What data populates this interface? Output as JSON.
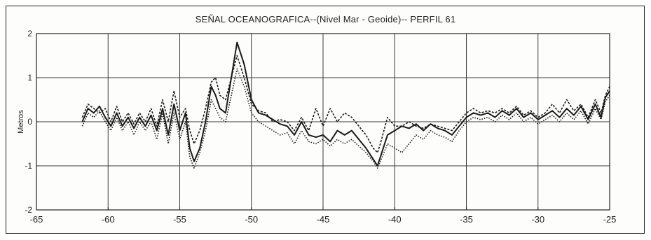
{
  "chart_data": {
    "type": "line",
    "title": "SEÑAL OCEANOGRAFICA--(Nivel Mar - Geoide)-- PERFIL 61",
    "ylabel": "Metros",
    "xlabel": "",
    "xlim": [
      -65,
      -25
    ],
    "ylim": [
      -2,
      2
    ],
    "xticks": [
      "-65",
      "-60",
      "-55",
      "-50",
      "-45",
      "-40",
      "-35",
      "-30",
      "-25"
    ],
    "yticks": [
      "2",
      "1",
      "0",
      "-1",
      "-2"
    ],
    "grid": true,
    "series": [
      {
        "values": [
          [
            -61.8,
            0.0
          ],
          [
            -61.4,
            0.3
          ],
          [
            -61.0,
            0.2
          ],
          [
            -60.6,
            0.35
          ],
          [
            -60.2,
            0.1
          ],
          [
            -59.8,
            -0.1
          ],
          [
            -59.4,
            0.2
          ],
          [
            -59.0,
            -0.1
          ],
          [
            -58.6,
            0.1
          ],
          [
            -58.2,
            -0.15
          ],
          [
            -57.8,
            0.1
          ],
          [
            -57.4,
            -0.1
          ],
          [
            -57.0,
            0.15
          ],
          [
            -56.6,
            -0.2
          ],
          [
            -56.2,
            0.3
          ],
          [
            -55.8,
            -0.3
          ],
          [
            -55.4,
            0.4
          ],
          [
            -55.0,
            -0.2
          ],
          [
            -54.6,
            0.2
          ],
          [
            -54.3,
            -0.6
          ],
          [
            -54.0,
            -0.9
          ],
          [
            -53.6,
            -0.6
          ],
          [
            -53.2,
            0.0
          ],
          [
            -52.8,
            0.8
          ],
          [
            -52.5,
            0.6
          ],
          [
            -52.2,
            0.3
          ],
          [
            -51.8,
            0.2
          ],
          [
            -51.0,
            1.8
          ],
          [
            -50.5,
            1.3
          ],
          [
            -50.0,
            0.5
          ],
          [
            -49.5,
            0.2
          ],
          [
            -49.0,
            0.15
          ],
          [
            -48.5,
            0.05
          ],
          [
            -48.0,
            -0.05
          ],
          [
            -47.5,
            -0.1
          ],
          [
            -47.0,
            -0.3
          ],
          [
            -46.5,
            0.0
          ],
          [
            -46.0,
            -0.3
          ],
          [
            -45.5,
            -0.35
          ],
          [
            -45.0,
            -0.3
          ],
          [
            -44.5,
            -0.45
          ],
          [
            -44.0,
            -0.2
          ],
          [
            -43.5,
            -0.3
          ],
          [
            -43.0,
            -0.2
          ],
          [
            -42.5,
            -0.4
          ],
          [
            -42.0,
            -0.6
          ],
          [
            -41.5,
            -0.85
          ],
          [
            -41.2,
            -1.0
          ],
          [
            -41.0,
            -0.8
          ],
          [
            -40.5,
            -0.3
          ],
          [
            -40.0,
            -0.2
          ],
          [
            -39.5,
            -0.1
          ],
          [
            -39.0,
            -0.15
          ],
          [
            -38.5,
            -0.05
          ],
          [
            -38.0,
            -0.2
          ],
          [
            -37.5,
            -0.05
          ],
          [
            -37.0,
            -0.15
          ],
          [
            -36.5,
            -0.2
          ],
          [
            -36.0,
            -0.3
          ],
          [
            -35.5,
            -0.1
          ],
          [
            -35.0,
            0.1
          ],
          [
            -34.5,
            0.2
          ],
          [
            -34.0,
            0.15
          ],
          [
            -33.5,
            0.2
          ],
          [
            -33.0,
            0.1
          ],
          [
            -32.5,
            0.25
          ],
          [
            -32.0,
            0.15
          ],
          [
            -31.5,
            0.3
          ],
          [
            -31.0,
            0.1
          ],
          [
            -30.5,
            0.2
          ],
          [
            -30.0,
            0.05
          ],
          [
            -29.5,
            0.15
          ],
          [
            -29.0,
            0.25
          ],
          [
            -28.5,
            0.1
          ],
          [
            -28.0,
            0.3
          ],
          [
            -27.5,
            0.15
          ],
          [
            -27.0,
            0.35
          ],
          [
            -26.5,
            0.05
          ],
          [
            -26.0,
            0.4
          ],
          [
            -25.6,
            0.1
          ],
          [
            -25.3,
            0.55
          ],
          [
            -25.0,
            0.7
          ]
        ]
      },
      {
        "values": [
          [
            -61.8,
            0.1
          ],
          [
            -61.4,
            0.4
          ],
          [
            -61.0,
            0.3
          ],
          [
            -60.6,
            0.2
          ],
          [
            -60.2,
            0.3
          ],
          [
            -59.8,
            0.0
          ],
          [
            -59.4,
            0.35
          ],
          [
            -59.0,
            0.0
          ],
          [
            -58.6,
            0.2
          ],
          [
            -58.2,
            -0.05
          ],
          [
            -57.8,
            0.2
          ],
          [
            -57.4,
            0.0
          ],
          [
            -57.0,
            0.3
          ],
          [
            -56.6,
            -0.1
          ],
          [
            -56.2,
            0.5
          ],
          [
            -55.8,
            0.0
          ],
          [
            -55.4,
            0.7
          ],
          [
            -55.0,
            0.1
          ],
          [
            -54.6,
            0.3
          ],
          [
            -54.3,
            -0.2
          ],
          [
            -54.0,
            -0.5
          ],
          [
            -53.6,
            -0.2
          ],
          [
            -53.2,
            0.3
          ],
          [
            -52.8,
            0.9
          ],
          [
            -52.5,
            1.0
          ],
          [
            -52.2,
            0.6
          ],
          [
            -51.8,
            0.5
          ],
          [
            -51.0,
            1.5
          ],
          [
            -50.5,
            1.0
          ],
          [
            -50.0,
            0.4
          ],
          [
            -49.5,
            0.25
          ],
          [
            -49.0,
            0.2
          ],
          [
            -48.5,
            0.0
          ],
          [
            -48.0,
            0.05
          ],
          [
            -47.5,
            0.0
          ],
          [
            -47.0,
            -0.2
          ],
          [
            -46.5,
            0.1
          ],
          [
            -46.0,
            -0.2
          ],
          [
            -45.5,
            0.3
          ],
          [
            -45.0,
            -0.1
          ],
          [
            -44.5,
            0.3
          ],
          [
            -44.0,
            0.0
          ],
          [
            -43.5,
            0.2
          ],
          [
            -43.0,
            0.1
          ],
          [
            -42.5,
            -0.1
          ],
          [
            -42.0,
            -0.3
          ],
          [
            -41.5,
            -0.6
          ],
          [
            -41.2,
            -0.7
          ],
          [
            -41.0,
            -0.5
          ],
          [
            -40.5,
            0.1
          ],
          [
            -40.0,
            -0.1
          ],
          [
            -39.5,
            -0.1
          ],
          [
            -39.0,
            0.0
          ],
          [
            -38.5,
            -0.1
          ],
          [
            -38.0,
            -0.15
          ],
          [
            -37.5,
            -0.05
          ],
          [
            -37.0,
            -0.1
          ],
          [
            -36.5,
            -0.15
          ],
          [
            -36.0,
            -0.2
          ],
          [
            -35.5,
            0.0
          ],
          [
            -35.0,
            0.2
          ],
          [
            -34.5,
            0.3
          ],
          [
            -34.0,
            0.2
          ],
          [
            -33.5,
            0.25
          ],
          [
            -33.0,
            0.2
          ],
          [
            -32.5,
            0.3
          ],
          [
            -32.0,
            0.2
          ],
          [
            -31.5,
            0.35
          ],
          [
            -31.0,
            0.15
          ],
          [
            -30.5,
            0.25
          ],
          [
            -30.0,
            0.1
          ],
          [
            -29.5,
            0.2
          ],
          [
            -29.0,
            0.4
          ],
          [
            -28.5,
            0.2
          ],
          [
            -28.0,
            0.5
          ],
          [
            -27.5,
            0.25
          ],
          [
            -27.0,
            0.4
          ],
          [
            -26.5,
            0.1
          ],
          [
            -26.0,
            0.5
          ],
          [
            -25.6,
            0.2
          ],
          [
            -25.3,
            0.6
          ],
          [
            -25.0,
            0.8
          ]
        ]
      },
      {
        "values": [
          [
            -61.8,
            -0.1
          ],
          [
            -61.4,
            0.2
          ],
          [
            -61.0,
            0.1
          ],
          [
            -60.6,
            0.25
          ],
          [
            -60.2,
            0.0
          ],
          [
            -59.8,
            -0.2
          ],
          [
            -59.4,
            0.1
          ],
          [
            -59.0,
            -0.2
          ],
          [
            -58.6,
            0.0
          ],
          [
            -58.2,
            -0.3
          ],
          [
            -57.8,
            0.0
          ],
          [
            -57.4,
            -0.2
          ],
          [
            -57.0,
            0.0
          ],
          [
            -56.6,
            -0.4
          ],
          [
            -56.2,
            0.2
          ],
          [
            -55.8,
            -0.5
          ],
          [
            -55.4,
            0.2
          ],
          [
            -55.0,
            -0.4
          ],
          [
            -54.6,
            0.0
          ],
          [
            -54.3,
            -0.8
          ],
          [
            -54.0,
            -1.05
          ],
          [
            -53.6,
            -0.7
          ],
          [
            -53.2,
            -0.2
          ],
          [
            -52.8,
            0.5
          ],
          [
            -52.5,
            0.3
          ],
          [
            -52.2,
            0.1
          ],
          [
            -51.8,
            0.0
          ],
          [
            -51.0,
            1.2
          ],
          [
            -50.5,
            0.8
          ],
          [
            -50.0,
            0.2
          ],
          [
            -49.5,
            0.0
          ],
          [
            -49.0,
            -0.1
          ],
          [
            -48.5,
            -0.2
          ],
          [
            -48.0,
            -0.3
          ],
          [
            -47.5,
            -0.25
          ],
          [
            -47.0,
            -0.5
          ],
          [
            -46.5,
            -0.2
          ],
          [
            -46.0,
            -0.45
          ],
          [
            -45.5,
            -0.5
          ],
          [
            -45.0,
            -0.4
          ],
          [
            -44.5,
            -0.55
          ],
          [
            -44.0,
            -0.4
          ],
          [
            -43.5,
            -0.5
          ],
          [
            -43.0,
            -0.4
          ],
          [
            -42.5,
            -0.55
          ],
          [
            -42.0,
            -0.7
          ],
          [
            -41.5,
            -0.9
          ],
          [
            -41.2,
            -1.05
          ],
          [
            -41.0,
            -0.9
          ],
          [
            -40.5,
            -0.5
          ],
          [
            -40.0,
            -0.6
          ],
          [
            -39.5,
            -0.7
          ],
          [
            -39.0,
            -0.5
          ],
          [
            -38.5,
            -0.3
          ],
          [
            -38.0,
            -0.4
          ],
          [
            -37.5,
            -0.2
          ],
          [
            -37.0,
            -0.3
          ],
          [
            -36.5,
            -0.35
          ],
          [
            -36.0,
            -0.45
          ],
          [
            -35.5,
            -0.2
          ],
          [
            -35.0,
            0.0
          ],
          [
            -34.5,
            0.1
          ],
          [
            -34.0,
            0.05
          ],
          [
            -33.5,
            0.1
          ],
          [
            -33.0,
            0.0
          ],
          [
            -32.5,
            0.15
          ],
          [
            -32.0,
            0.05
          ],
          [
            -31.5,
            0.2
          ],
          [
            -31.0,
            0.0
          ],
          [
            -30.5,
            0.1
          ],
          [
            -30.0,
            -0.05
          ],
          [
            -29.5,
            0.05
          ],
          [
            -29.0,
            0.15
          ],
          [
            -28.5,
            0.0
          ],
          [
            -28.0,
            0.2
          ],
          [
            -27.5,
            0.05
          ],
          [
            -27.0,
            0.25
          ],
          [
            -26.5,
            -0.05
          ],
          [
            -26.0,
            0.3
          ],
          [
            -25.6,
            0.05
          ],
          [
            -25.3,
            0.45
          ],
          [
            -25.0,
            0.6
          ]
        ]
      }
    ],
    "colors": {
      "line": "#1a1a1a",
      "grid": "#3a3a3a",
      "background": "#fdfdfb"
    }
  }
}
